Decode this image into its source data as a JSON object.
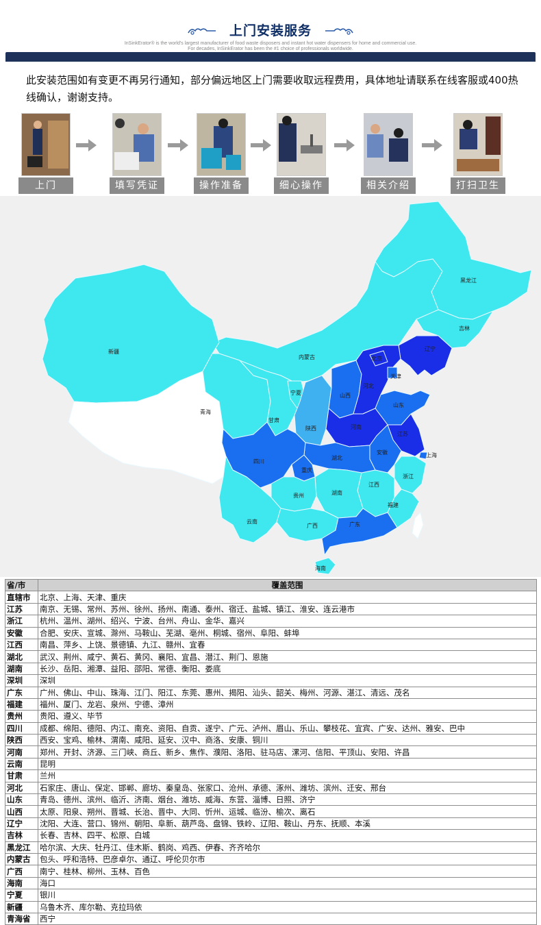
{
  "header": {
    "title": "上门安装服务",
    "subtitle_line1": "InSinkErator® is the world's largest manufacturer of food waste disposers and instant hot water dispensers for home and commercial use.",
    "subtitle_line2": "For decades, InSinkErator has been the #1 choice of professionals worldwide.",
    "colors": {
      "title": "#0f2f66",
      "bar": "#1e3158"
    }
  },
  "notice": "此安装范围如有变更不再另行通知，部分偏远地区上门需要收取远程费用，具体地址请联系在线客服或400热线确认，谢谢支持。",
  "steps": [
    {
      "label": "上门",
      "icon": "technician-door-photo"
    },
    {
      "label": "填写凭证",
      "icon": "filling-form-photo"
    },
    {
      "label": "操作准备",
      "icon": "preparation-photo"
    },
    {
      "label": "细心操作",
      "icon": "installation-photo"
    },
    {
      "label": "相关介绍",
      "icon": "introduction-photo"
    },
    {
      "label": "打扫卫生",
      "icon": "cleaning-photo"
    }
  ],
  "map": {
    "colors": {
      "light": "#3fe8ee",
      "mid": "#3fb0f0",
      "deep": "#1a6ef0",
      "dark": "#1a2ee8",
      "none": "#ffffff"
    },
    "provinces": [
      "黑龙江",
      "吉林",
      "辽宁",
      "内蒙古",
      "新疆",
      "青海",
      "甘肃",
      "宁夏",
      "陕西",
      "山西",
      "河北",
      "北京",
      "天津",
      "山东",
      "河南",
      "江苏",
      "上海",
      "安徽",
      "湖北",
      "四川",
      "重庆",
      "浙江",
      "江西",
      "湖南",
      "贵州",
      "福建",
      "云南",
      "广西",
      "广东",
      "海南"
    ]
  },
  "table": {
    "headers": [
      "省/市",
      "覆盖范围"
    ],
    "rows": [
      [
        "直辖市",
        "北京、上海、天津、重庆"
      ],
      [
        "江苏",
        "南京、无锡、常州、苏州、徐州、扬州、南通、泰州、宿迁、盐城、镇江、淮安、连云港市"
      ],
      [
        "浙江",
        "杭州、温州、湖州、绍兴、宁波、台州、舟山、金华、嘉兴"
      ],
      [
        "安徽",
        "合肥、安庆、宣城、滁州、马鞍山、芜湖、亳州、桐城、宿州、阜阳、蚌埠"
      ],
      [
        "江西",
        "南昌、萍乡、上饶、景德镇、九江、赣州、宜春"
      ],
      [
        "湖北",
        "武汉、荆州、咸宁、黄石、黄冈、襄阳、宜昌、潜江、荆门、恩施"
      ],
      [
        "湖南",
        "长沙、岳阳、湘潭、益阳、邵阳、常德、衡阳、娄底"
      ],
      [
        "深圳",
        "深圳"
      ],
      [
        "广东",
        "广州、佛山、中山、珠海、江门、阳江、东莞、惠州、揭阳、汕头、韶关、梅州、河源、湛江、清远、茂名"
      ],
      [
        "福建",
        "福州、厦门、龙岩、泉州、宁德、漳州"
      ],
      [
        "贵州",
        "贵阳、遵义、毕节"
      ],
      [
        "四川",
        "成都、绵阳、德阳、内江、南充、资阳、自贡、遂宁、广元、泸州、眉山、乐山、攀枝花、宜宾、广安、达州、雅安、巴中"
      ],
      [
        "陕西",
        "西安、宝鸡、榆林、渭南、咸阳、延安、汉中、商洛、安康、铜川"
      ],
      [
        "河南",
        "郑州、开封、济源、三门峡、商丘、新乡、焦作、濮阳、洛阳、驻马店、漯河、信阳、平顶山、安阳、许昌"
      ],
      [
        "云南",
        "昆明"
      ],
      [
        "甘肃",
        "兰州"
      ],
      [
        "河北",
        "石家庄、唐山、保定、邯郸、廊坊、秦皇岛、张家口、沧州、承德、涿州、潍坊、滨州、迁安、邢台"
      ],
      [
        "山东",
        "青岛、德州、滨州、临沂、济南、烟台、潍坊、威海、东营、淄博、日照、济宁"
      ],
      [
        "山西",
        "太原、阳泉、朔州、晋城、长治、晋中、大同、忻州、运城、临汾、榆次、离石"
      ],
      [
        "辽宁",
        "沈阳、大连、营口、锦州、朝阳、阜新、葫芦岛、盘锦、铁岭、辽阳、鞍山、丹东、抚顺、本溪"
      ],
      [
        "吉林",
        "长春、吉林、四平、松原、白城"
      ],
      [
        "黑龙江",
        "哈尔滨、大庆、牡丹江、佳木斯、鹤岗、鸡西、伊春、齐齐哈尔"
      ],
      [
        "内蒙古",
        "包头、呼和浩特、巴彦卓尔、通辽、呼伦贝尔市"
      ],
      [
        "广西",
        "南宁、桂林、柳州、玉林、百色"
      ],
      [
        "海南",
        "海口"
      ],
      [
        "宁夏",
        "银川"
      ],
      [
        "新疆",
        "乌鲁木齐、库尔勒、克拉玛依"
      ],
      [
        "青海省",
        "西宁"
      ]
    ]
  }
}
